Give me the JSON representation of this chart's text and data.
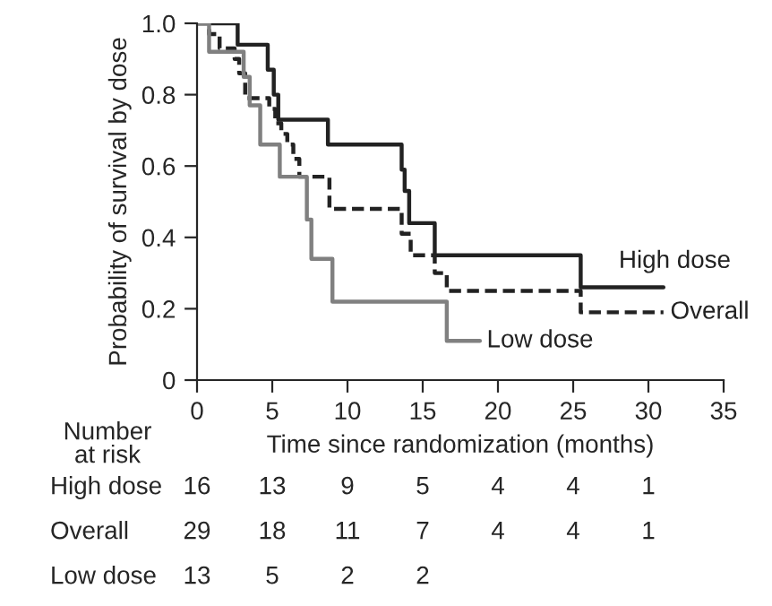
{
  "chart_data": {
    "type": "step",
    "xlabel": "Time since randomization (months)",
    "ylabel": "Probability of survival by dose",
    "xlim": [
      0,
      35
    ],
    "xticks": [
      0,
      5,
      10,
      15,
      20,
      25,
      30,
      35
    ],
    "ylim": [
      0,
      1.0
    ],
    "yticks": [
      0,
      {
        "value": 0.2,
        "label": "0.2"
      },
      {
        "value": 0.4,
        "label": "0.4"
      },
      {
        "value": 0.6,
        "label": "0.6"
      },
      {
        "value": 0.8,
        "label": "0.8"
      },
      {
        "value": 1.0,
        "label": "1.0"
      }
    ],
    "grid": false,
    "legend": false,
    "series": [
      {
        "name": "High dose",
        "color": "#222222",
        "line_style": "solid",
        "x": [
          0,
          2.7,
          4.7,
          5.1,
          5.4,
          8.7,
          13.6,
          13.8,
          14.1,
          15.8,
          25.5,
          31
        ],
        "values": [
          1.0,
          0.94,
          0.87,
          0.8,
          0.73,
          0.66,
          0.59,
          0.53,
          0.44,
          0.35,
          0.26,
          0.26
        ]
      },
      {
        "name": "Overall",
        "color": "#222222",
        "line_style": "dashed",
        "x": [
          0,
          0.8,
          1.5,
          2.5,
          2.8,
          3.2,
          4.8,
          5.2,
          5.6,
          6.0,
          6.4,
          6.8,
          8.8,
          13.6,
          14.2,
          15.8,
          16.6,
          25.5,
          31
        ],
        "values": [
          1.0,
          0.97,
          0.93,
          0.9,
          0.86,
          0.79,
          0.76,
          0.72,
          0.69,
          0.66,
          0.62,
          0.57,
          0.48,
          0.41,
          0.35,
          0.3,
          0.25,
          0.19,
          0.19
        ]
      },
      {
        "name": "Low dose",
        "color": "#808080",
        "line_style": "solid",
        "x": [
          0,
          0.8,
          3.1,
          3.5,
          4.2,
          5.5,
          7.3,
          7.6,
          9.0,
          16.6,
          18.8
        ],
        "values": [
          1.0,
          0.92,
          0.85,
          0.77,
          0.66,
          0.57,
          0.45,
          0.34,
          0.22,
          0.11,
          0.11
        ]
      }
    ],
    "annotations": [
      "Number\nat risk",
      "High dose",
      "16",
      "13",
      "9",
      "5",
      "4",
      "4",
      "1",
      "Overall",
      "29",
      "18",
      "11",
      "7",
      "4",
      "4",
      "1",
      "Low dose",
      "13",
      "5",
      "2",
      "2"
    ]
  }
}
